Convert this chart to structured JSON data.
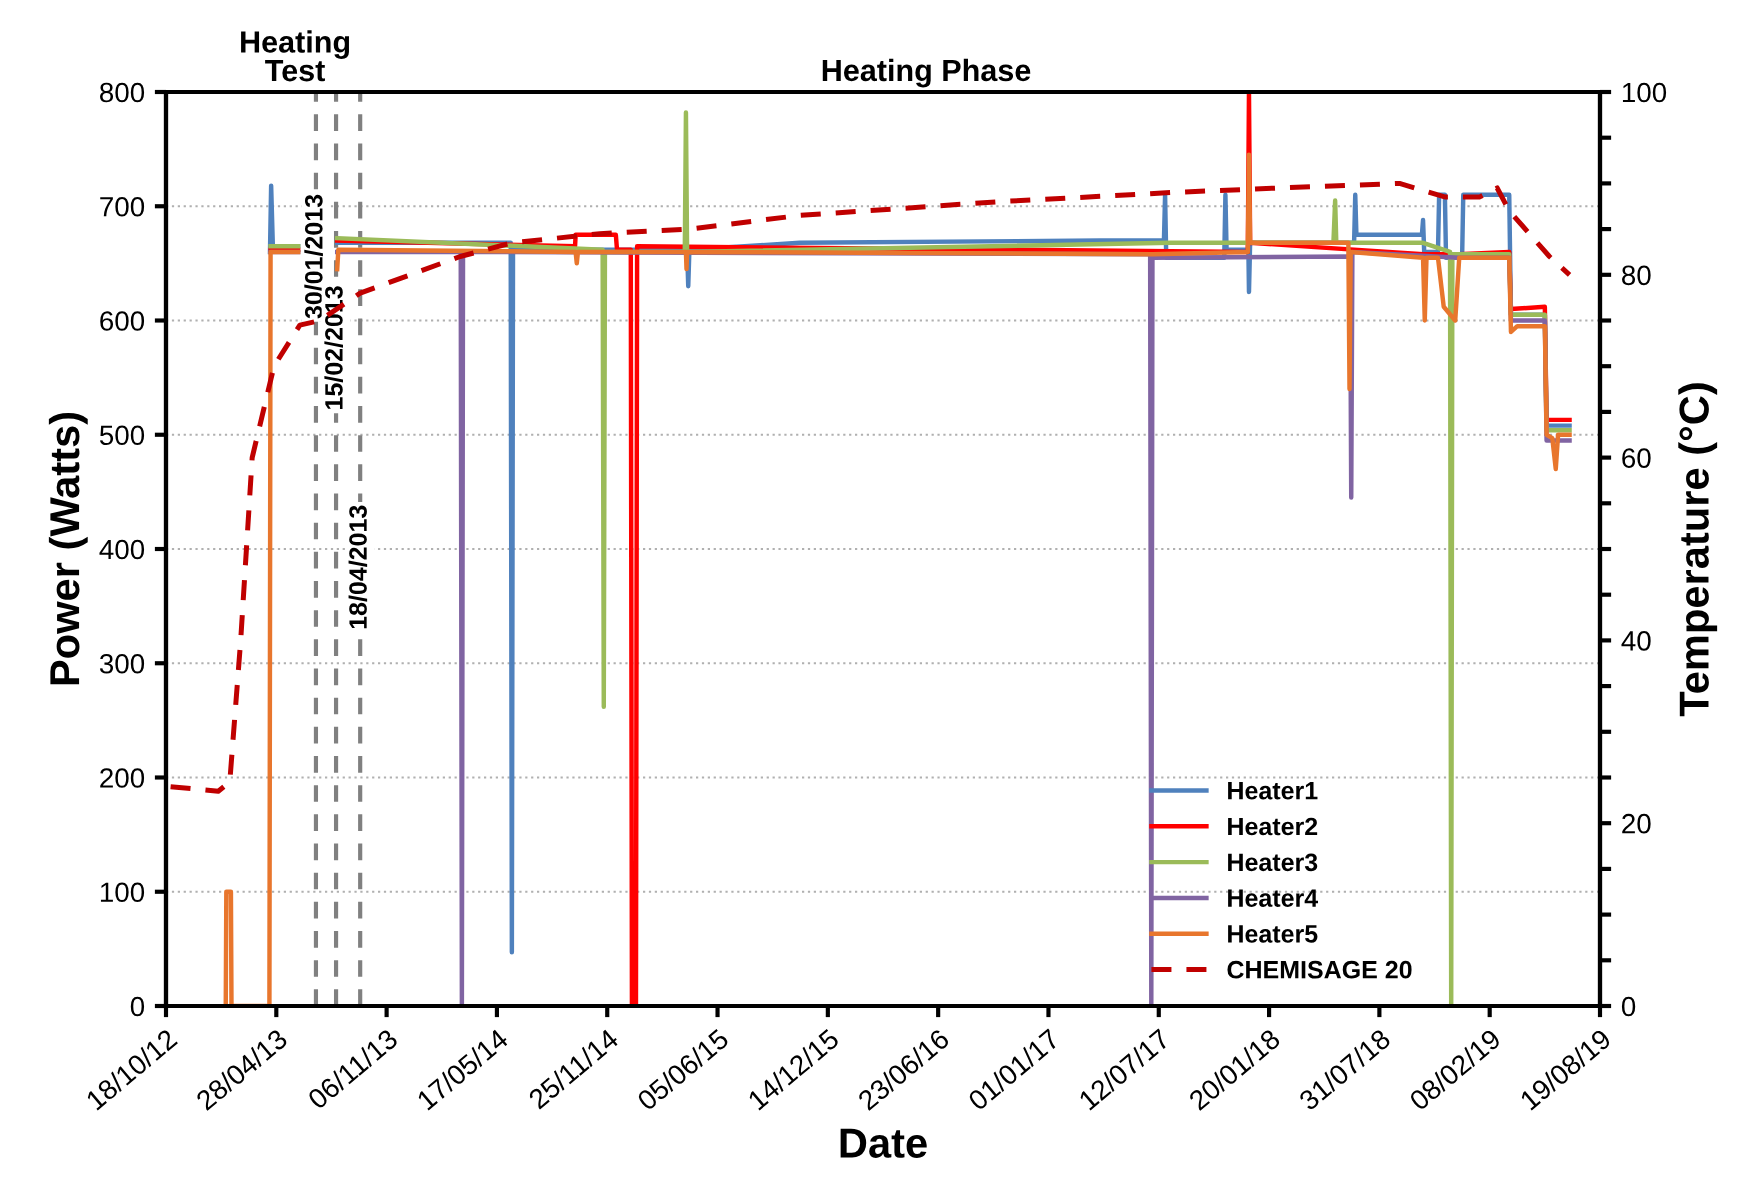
{
  "chart_data": {
    "type": "line",
    "xlabel": "Date",
    "ylabel": "Power (Watts)",
    "y2label": "Temperature (°C)",
    "annotations": [
      "Heating\nTest",
      "Heating Phase"
    ],
    "xlim": [
      "2012-10-18",
      "2019-08-19"
    ],
    "xticks": [
      {
        "value": "2012-10-18",
        "label": "18/10/12"
      },
      {
        "value": "2013-04-28",
        "label": "28/04/13"
      },
      {
        "value": "2013-11-06",
        "label": "06/11/13"
      },
      {
        "value": "2014-05-17",
        "label": "17/05/14"
      },
      {
        "value": "2014-11-25",
        "label": "25/11/14"
      },
      {
        "value": "2015-06-05",
        "label": "05/06/15"
      },
      {
        "value": "2015-12-14",
        "label": "14/12/15"
      },
      {
        "value": "2016-06-23",
        "label": "23/06/16"
      },
      {
        "value": "2017-01-01",
        "label": "01/01/17"
      },
      {
        "value": "2017-07-12",
        "label": "12/07/17"
      },
      {
        "value": "2018-01-20",
        "label": "20/01/18"
      },
      {
        "value": "2018-07-31",
        "label": "31/07/18"
      },
      {
        "value": "2019-02-08",
        "label": "08/02/19"
      },
      {
        "value": "2019-08-19",
        "label": "19/08/19"
      }
    ],
    "ylim": [
      0,
      800
    ],
    "yticks": [
      0,
      100,
      200,
      300,
      400,
      500,
      600,
      700,
      800
    ],
    "y2lim": [
      0,
      100
    ],
    "y2ticks": [
      0,
      {
        "value": 5,
        "label": null
      },
      {
        "value": 10,
        "label": null
      },
      {
        "value": 15,
        "label": null
      },
      20,
      {
        "value": 25,
        "label": null
      },
      {
        "value": 30,
        "label": null
      },
      {
        "value": 35,
        "label": null
      },
      40,
      {
        "value": 45,
        "label": null
      },
      {
        "value": 50,
        "label": null
      },
      {
        "value": 55,
        "label": null
      },
      60,
      {
        "value": 65,
        "label": null
      },
      {
        "value": 70,
        "label": null
      },
      {
        "value": 75,
        "label": null
      },
      80,
      {
        "value": 85,
        "label": null
      },
      {
        "value": 90,
        "label": null
      },
      {
        "value": 95,
        "label": null
      },
      100
    ],
    "grid": "y",
    "legend": "bottom right",
    "ref_lines": [
      {
        "axis": "x",
        "value": "2013-07-06",
        "label": "30/01/2013",
        "color": "#808080",
        "line_style": "dashed"
      },
      {
        "axis": "x",
        "value": "2013-08-10",
        "label": "15/02/2013",
        "color": "#808080",
        "line_style": "dashed"
      },
      {
        "axis": "x",
        "value": "2013-09-21",
        "label": "18/04/2013",
        "color": "#808080",
        "line_style": "dashed"
      }
    ],
    "series": [
      {
        "name": "Heater1",
        "color": "#4f81bd",
        "x": [
          "2013-04-17",
          "2013-04-19",
          "2013-04-22",
          "2013-06-05",
          "2013-06-10",
          "2013-08-12",
          "2014-06-10",
          "2014-06-12",
          "2014-06-14",
          "2015-04-13",
          "2015-04-15",
          "2015-04-17",
          "2015-10-26",
          "2017-04-01",
          "2017-07-21",
          "2017-07-23",
          "2017-07-25",
          "2017-11-03",
          "2017-11-05",
          "2017-11-07",
          "2017-12-15",
          "2017-12-16",
          "2017-12-18",
          "2018-06-17",
          "2018-06-19",
          "2018-06-21",
          "2018-10-13",
          "2018-10-15",
          "2018-10-17",
          "2018-11-10",
          "2018-11-12",
          "2018-11-22",
          "2018-11-24",
          "2018-12-22",
          "2018-12-24",
          "2019-03-14",
          "2019-03-17",
          "2019-05-15",
          "2019-05-18",
          "2019-06-27"
        ],
        "values": [
          660,
          718,
          665,
          665,
          null,
          668,
          668,
          47,
          662,
          662,
          630,
          662,
          668,
          670,
          670,
          710,
          655,
          655,
          710,
          662,
          662,
          625,
          668,
          668,
          710,
          675,
          675,
          688,
          660,
          660,
          710,
          710,
          655,
          655,
          710,
          710,
          605,
          605,
          508,
          508
        ]
      },
      {
        "name": "Heater2",
        "color": "#ff0000",
        "x": [
          "2013-04-18",
          "2013-06-05",
          "2013-06-10",
          "2013-08-12",
          "2014-09-30",
          "2014-10-01",
          "2014-12-10",
          "2014-12-12",
          "2015-01-05",
          "2015-01-07",
          "2015-01-14",
          "2015-01-16",
          "2017-12-14",
          "2017-12-16",
          "2017-12-18",
          "2018-10-15",
          "2018-12-17",
          "2019-03-14",
          "2019-03-17",
          "2019-05-15",
          "2019-05-18",
          "2019-06-27"
        ],
        "values": [
          662,
          662,
          null,
          670,
          665,
          675,
          675,
          662,
          662,
          0,
          0,
          665,
          660,
          800,
          668,
          658,
          658,
          660,
          610,
          612,
          513,
          513
        ]
      },
      {
        "name": "Heater3",
        "color": "#9bbb59",
        "x": [
          "2013-04-18",
          "2013-06-05",
          "2013-06-10",
          "2013-08-12",
          "2014-11-17",
          "2014-11-19",
          "2014-11-21",
          "2015-04-09",
          "2015-04-11",
          "2015-04-13",
          "2017-08-01",
          "2018-05-12",
          "2018-05-15",
          "2018-05-17",
          "2018-10-15",
          "2018-12-01",
          "2018-12-03",
          "2018-12-05",
          "2019-03-14",
          "2019-03-17",
          "2019-05-15",
          "2019-05-18",
          "2019-06-27"
        ],
        "values": [
          665,
          665,
          null,
          672,
          662,
          262,
          660,
          660,
          782,
          660,
          668,
          668,
          705,
          668,
          668,
          660,
          0,
          658,
          658,
          605,
          605,
          504,
          504
        ]
      },
      {
        "name": "Heater4",
        "color": "#8064a2",
        "x": [
          "2013-04-18",
          "2013-06-05",
          "2013-06-10",
          "2013-08-12",
          "2014-03-15",
          "2014-03-17",
          "2014-03-19",
          "2017-06-27",
          "2017-06-29",
          "2017-07-01",
          "2018-06-10",
          "2018-06-12",
          "2018-06-14",
          "2018-12-17",
          "2019-03-14",
          "2019-03-17",
          "2019-05-15",
          "2019-05-18",
          "2019-06-27"
        ],
        "values": [
          660,
          660,
          null,
          660,
          660,
          0,
          660,
          658,
          0,
          655,
          656,
          445,
          660,
          655,
          655,
          600,
          600,
          495,
          495
        ]
      },
      {
        "name": "Heater5",
        "color": "#e8762d",
        "x": [
          "2013-01-30",
          "2013-01-31",
          "2013-02-08",
          "2013-02-09",
          "2013-04-16",
          "2013-04-18",
          "2013-06-05",
          "2013-06-10",
          "2013-08-12",
          "2013-08-14",
          "2014-10-01",
          "2014-10-03",
          "2014-10-05",
          "2015-04-11",
          "2015-04-12",
          "2015-04-13",
          "2017-07-01",
          "2017-12-14",
          "2017-12-16",
          "2017-12-18",
          "2018-06-07",
          "2018-06-09",
          "2018-06-11",
          "2018-10-15",
          "2018-10-18",
          "2018-10-21",
          "2018-11-10",
          "2018-11-20",
          "2018-12-10",
          "2018-12-17",
          "2019-03-14",
          "2019-03-17",
          "2019-03-28",
          "2019-05-15",
          "2019-05-18",
          "2019-05-28",
          "2019-06-03",
          "2019-06-07",
          "2019-06-27"
        ],
        "values": [
          0,
          100,
          100,
          0,
          0,
          660,
          660,
          null,
          645,
          662,
          660,
          650,
          660,
          660,
          645,
          660,
          658,
          660,
          745,
          668,
          668,
          540,
          660,
          655,
          600,
          655,
          655,
          612,
          600,
          655,
          655,
          590,
          595,
          595,
          500,
          497,
          470,
          500,
          500
        ]
      },
      {
        "name": "CHEMISAGE 20",
        "color": "#c00000",
        "axis": "y2",
        "line_style": "dashed",
        "x": [
          "2012-10-26",
          "2013-01-17",
          "2013-02-06",
          "2013-02-25",
          "2013-03-17",
          "2013-04-24",
          "2013-06-08",
          "2013-07-13",
          "2013-09-21",
          "2014-03-14",
          "2014-06-12",
          "2014-11-12",
          "2015-04-18",
          "2015-10-26",
          "2016-10-08",
          "2017-08-03",
          "2018-02-07",
          "2018-09-04",
          "2018-11-23",
          "2019-01-21",
          "2019-02-21",
          "2019-03-14",
          "2019-05-23",
          "2019-06-27"
        ],
        "values": [
          24,
          23.5,
          24.5,
          40,
          60,
          70,
          74.5,
          75,
          78,
          82,
          83.5,
          84.5,
          85,
          86.5,
          88,
          89,
          89.5,
          90,
          88.5,
          88.5,
          89.5,
          87,
          82,
          80
        ]
      }
    ]
  }
}
